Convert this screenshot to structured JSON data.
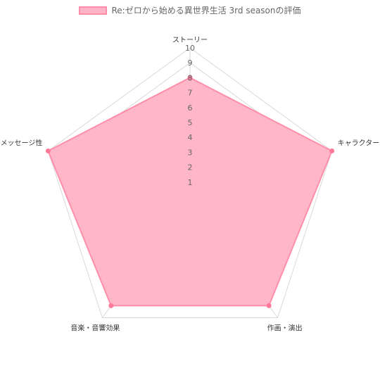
{
  "colors": {
    "fill": "#ffb3c4",
    "stroke": "#ff8fa8",
    "point": "#ff7a98",
    "grid": "#d9d9d9"
  },
  "chart_data": {
    "type": "radar",
    "title": "",
    "legend": {
      "position": "top",
      "label": "Re:ゼロから始める異世界生活 3rd seasonの評価"
    },
    "axes": [
      "ストーリー",
      "キャラクター",
      "作画・演出",
      "音楽・音響効果",
      "メッセージ性"
    ],
    "range": [
      0,
      10
    ],
    "ticks": [
      "1",
      "2",
      "3",
      "4",
      "5",
      "6",
      "7",
      "8",
      "9",
      "10"
    ],
    "grid": true,
    "series": [
      {
        "name": "Re:ゼロから始める異世界生活 3rd seasonの評価",
        "values": [
          8,
          10,
          9,
          9,
          10
        ]
      }
    ]
  }
}
